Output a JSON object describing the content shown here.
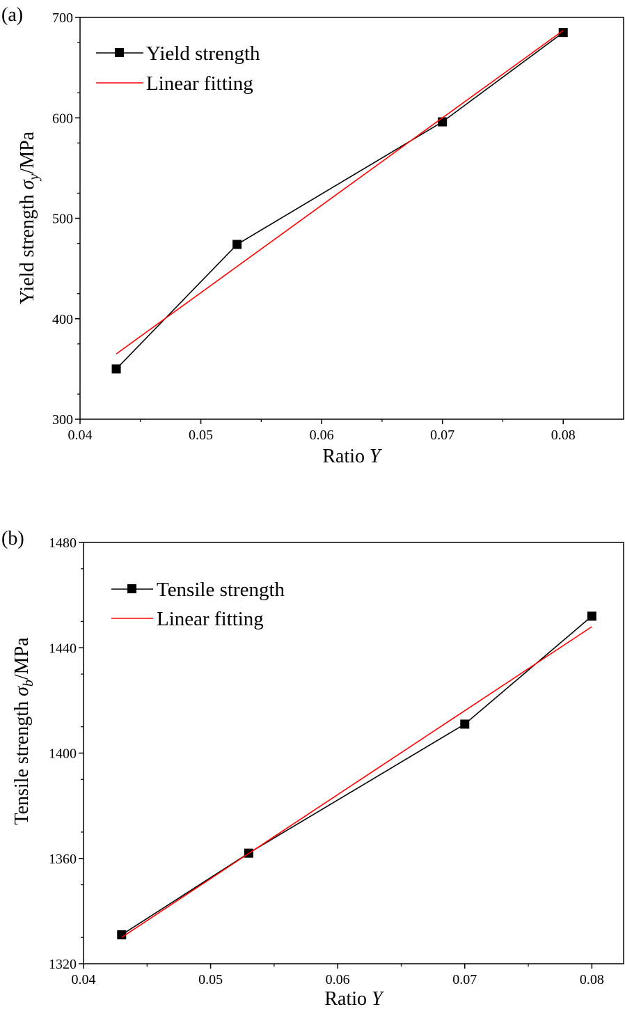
{
  "chart_data": [
    {
      "panel_label": "(a)",
      "type": "line",
      "xlabel": "Ratio",
      "xlabel_symbol": "Y",
      "ylabel": "Yield strength",
      "ylabel_symbol": "σ",
      "ylabel_subscript": "y",
      "ylabel_unit": "/MPa",
      "xlim": [
        0.04,
        0.085
      ],
      "ylim": [
        300,
        700
      ],
      "xticks": [
        0.04,
        0.05,
        0.06,
        0.07,
        0.08
      ],
      "xtick_labels": [
        "0.04",
        "0.05",
        "0.06",
        "0.07",
        "0.08"
      ],
      "yticks": [
        300,
        400,
        500,
        600,
        700
      ],
      "ytick_labels": [
        "300",
        "400",
        "500",
        "600",
        "700"
      ],
      "legend_position": "top-left",
      "series": [
        {
          "name": "Yield strength",
          "color": "#000000",
          "marker": "square",
          "x": [
            0.043,
            0.053,
            0.07,
            0.08
          ],
          "y": [
            350,
            474,
            596,
            685
          ]
        },
        {
          "name": "Linear fitting",
          "color": "#ff0000",
          "marker": "none",
          "x": [
            0.043,
            0.08
          ],
          "y": [
            365,
            687
          ]
        }
      ]
    },
    {
      "panel_label": "(b)",
      "type": "line",
      "xlabel": "Ratio",
      "xlabel_symbol": "Y",
      "ylabel": "Tensile strength",
      "ylabel_symbol": "σ",
      "ylabel_subscript": "b",
      "ylabel_unit": "/MPa",
      "xlim": [
        0.04,
        0.0825
      ],
      "ylim": [
        1320,
        1480
      ],
      "xticks": [
        0.04,
        0.05,
        0.06,
        0.07,
        0.08
      ],
      "xtick_labels": [
        "0.04",
        "0.05",
        "0.06",
        "0.07",
        "0.08"
      ],
      "yticks": [
        1320,
        1360,
        1400,
        1440,
        1480
      ],
      "ytick_labels": [
        "1320",
        "1360",
        "1400",
        "1440",
        "1480"
      ],
      "legend_position": "top-left",
      "series": [
        {
          "name": "Tensile strength",
          "color": "#000000",
          "marker": "square",
          "x": [
            0.043,
            0.053,
            0.07,
            0.08
          ],
          "y": [
            1331,
            1362,
            1411,
            1452
          ]
        },
        {
          "name": "Linear fitting",
          "color": "#ff0000",
          "marker": "none",
          "x": [
            0.043,
            0.08
          ],
          "y": [
            1330,
            1448
          ]
        }
      ]
    }
  ]
}
